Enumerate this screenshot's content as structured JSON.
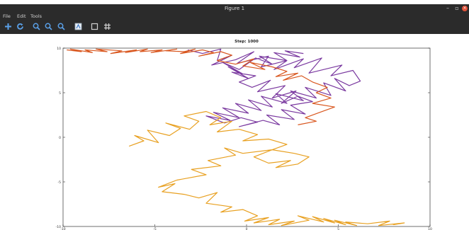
{
  "window": {
    "title": "Figure 1"
  },
  "menu": {
    "file": "File",
    "edit": "Edit",
    "tools": "Tools"
  },
  "toolbar": {
    "tools": [
      "pan-icon",
      "rotate-icon",
      "zoom-in-icon",
      "zoom-out-icon",
      "zoom-reset-icon",
      "data-cursor-icon",
      "select-rect-icon",
      "grid-icon"
    ]
  },
  "plot": {
    "title": "Step: 1000",
    "colors": {
      "purple": "#7b3aa0",
      "orange": "#e8a020",
      "red": "#d9571f"
    }
  },
  "chart_data": {
    "type": "line",
    "title": "Step: 1000",
    "xlim": [
      -10,
      10
    ],
    "ylim": [
      -10,
      10
    ],
    "yticks": [
      10,
      5,
      0,
      -5,
      -10
    ],
    "xticks": [
      -10,
      -5,
      0,
      5,
      10
    ],
    "grid": false,
    "series": [
      {
        "color": "#7b3aa0",
        "x": [
          -3.2,
          -2.4,
          -1.4,
          -1.6,
          -0.8,
          -1.9,
          -0.6,
          0.4,
          -0.5,
          1.2,
          0.8,
          2.2,
          1.5,
          3.1,
          2.6,
          4.1,
          3.4,
          5.2,
          4.6,
          5.8,
          6.2,
          5.6,
          4.8,
          5.4,
          4.2,
          4.6,
          3.2,
          3.8,
          2.4,
          3.1,
          1.6,
          2.2,
          0.8,
          1.4,
          0.1,
          0.8,
          -0.6,
          0.1,
          -1.3,
          -0.4,
          -1.8,
          -0.9,
          -2.2,
          -1.2,
          -0.3,
          0.6,
          -0.4,
          0.9,
          1.8,
          1.1,
          2.6,
          1.9,
          3.2,
          2.4,
          3.6,
          2.8,
          1.9,
          2.7,
          1.4,
          2.1,
          0.6,
          1.3,
          0.3,
          -0.4,
          0.5,
          -0.8,
          0.1,
          -1.0,
          -0.2,
          -1.3,
          -0.4,
          0.5,
          1.4,
          0.7,
          2.2,
          1.5,
          2.9,
          2.1,
          3.1
        ],
        "y": [
          9.8,
          9.4,
          9.9,
          8.6,
          9.2,
          8.1,
          8.7,
          9.6,
          8.3,
          9.1,
          7.9,
          8.6,
          7.6,
          8.8,
          7.8,
          8.9,
          7.2,
          8.1,
          6.9,
          7.5,
          6.3,
          5.8,
          6.6,
          5.2,
          6.1,
          4.7,
          5.6,
          4.4,
          5.2,
          4.1,
          4.9,
          3.8,
          4.6,
          3.4,
          4.2,
          3.0,
          3.8,
          2.7,
          3.3,
          2.2,
          2.8,
          1.9,
          2.4,
          1.6,
          2.2,
          1.7,
          1.2,
          1.9,
          1.4,
          2.5,
          2.0,
          3.1,
          2.6,
          3.6,
          4.0,
          4.6,
          3.8,
          5.2,
          4.4,
          5.8,
          5.1,
          6.4,
          5.6,
          6.2,
          6.9,
          7.3,
          6.6,
          7.9,
          7.1,
          8.4,
          7.6,
          8.9,
          8.2,
          9.1,
          8.6,
          9.5,
          9.0,
          9.7,
          9.4
        ]
      },
      {
        "color": "#e8a020",
        "x": [
          -6.4,
          -5.6,
          -6.1,
          -4.8,
          -5.4,
          -4.2,
          -3.6,
          -4.4,
          -3.1,
          -2.6,
          -3.4,
          -2.2,
          -1.4,
          -2.0,
          -0.8,
          -1.6,
          -0.4,
          0.6,
          -0.2,
          1.2,
          2.2,
          1.4,
          2.6,
          3.4,
          2.8,
          1.6,
          2.4,
          1.2,
          0.4,
          1.4,
          -0.2,
          -1.2,
          -0.6,
          -2.1,
          -1.4,
          -3.0,
          -2.2,
          -3.8,
          -4.8,
          -3.9,
          -4.6,
          -3.4,
          -2.6,
          -1.6,
          -2.2,
          -0.8,
          -1.4,
          -0.2,
          0.6,
          -0.1,
          1.2,
          0.4,
          1.8,
          1.2,
          2.6,
          1.9,
          3.4,
          2.8,
          4.2,
          3.6,
          4.8,
          4.2,
          5.4,
          4.8,
          6.0,
          5.4,
          6.6,
          7.8,
          7.2,
          8.6,
          8.0
        ],
        "y": [
          -1.0,
          -0.4,
          0.2,
          -0.6,
          0.8,
          0.2,
          1.0,
          1.6,
          0.9,
          1.8,
          2.4,
          2.9,
          2.2,
          1.4,
          1.8,
          0.6,
          0.9,
          0.3,
          -0.4,
          -0.2,
          -0.8,
          -1.4,
          -1.8,
          -2.2,
          -3.0,
          -3.4,
          -2.6,
          -2.9,
          -2.2,
          -1.4,
          -1.8,
          -1.2,
          -2.0,
          -2.6,
          -3.2,
          -3.6,
          -4.2,
          -4.8,
          -5.6,
          -5.2,
          -6.1,
          -6.4,
          -6.8,
          -6.2,
          -7.4,
          -7.8,
          -8.4,
          -8.1,
          -8.8,
          -9.4,
          -9.0,
          -9.6,
          -9.2,
          -9.8,
          -9.4,
          -9.9,
          -9.3,
          -8.8,
          -9.5,
          -8.9,
          -9.6,
          -9.1,
          -9.8,
          -9.3,
          -9.9,
          -9.5,
          -9.7,
          -9.4,
          -9.9,
          -9.6,
          -9.8
        ]
      },
      {
        "color": "#d9571f",
        "x": [
          -9.8,
          -9.0,
          -9.6,
          -8.4,
          -8.8,
          -7.6,
          -8.2,
          -6.8,
          -7.4,
          -6.0,
          -6.6,
          -5.4,
          -5.8,
          -4.6,
          -5.2,
          -3.8,
          -4.4,
          -3.4,
          -2.8,
          -3.6,
          -2.4,
          -1.8,
          -2.6,
          -1.4,
          -0.8,
          -1.6,
          -0.6,
          0.4,
          -0.2,
          1.0,
          0.2,
          1.4,
          2.2,
          1.6,
          2.8,
          2.0,
          3.0,
          3.6,
          4.4,
          3.8,
          4.6,
          3.6,
          4.8,
          4.0,
          3.2,
          3.8,
          2.8
        ],
        "y": [
          9.8,
          9.6,
          9.9,
          9.5,
          9.8,
          9.6,
          9.9,
          9.7,
          9.4,
          9.8,
          9.5,
          9.9,
          9.6,
          9.8,
          9.5,
          9.9,
          9.7,
          9.6,
          9.9,
          9.4,
          9.8,
          9.5,
          9.1,
          9.6,
          9.2,
          8.6,
          8.2,
          8.8,
          8.0,
          7.6,
          8.4,
          7.9,
          7.4,
          6.8,
          7.2,
          6.4,
          6.9,
          6.2,
          5.6,
          5.0,
          4.4,
          3.8,
          3.4,
          2.8,
          2.2,
          1.8,
          1.4
        ]
      }
    ]
  }
}
